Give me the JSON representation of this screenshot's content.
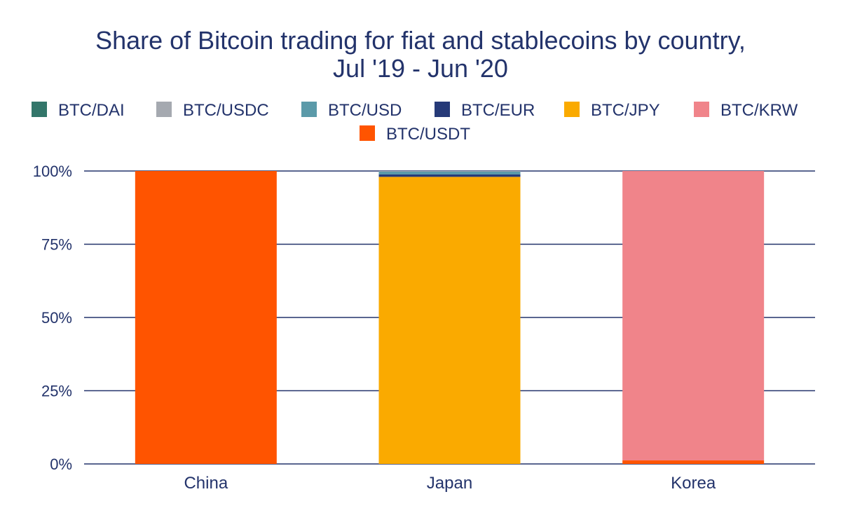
{
  "chart_data": {
    "type": "bar",
    "stacked": true,
    "title": "Share of Bitcoin trading for fiat and stablecoins by country, Jul '19 - Jun '20",
    "title_lines": [
      "Share of Bitcoin trading for fiat and stablecoins by country,",
      "Jul '19 - Jun '20"
    ],
    "categories": [
      "China",
      "Japan",
      "Korea"
    ],
    "ylim": [
      0,
      100
    ],
    "yticks": [
      0,
      25,
      50,
      75,
      100
    ],
    "ytick_labels": [
      "0%",
      "25%",
      "50%",
      "75%",
      "100%"
    ],
    "grid": true,
    "legend_position": "top",
    "series": [
      {
        "name": "BTC/USDT",
        "color": "#ff5400",
        "values": [
          100,
          0,
          1.2
        ]
      },
      {
        "name": "BTC/KRW",
        "color": "#f0848a",
        "values": [
          0,
          0,
          98.8
        ]
      },
      {
        "name": "BTC/JPY",
        "color": "#faaa00",
        "values": [
          0,
          98,
          0
        ]
      },
      {
        "name": "BTC/EUR",
        "color": "#263a78",
        "values": [
          0,
          0.8,
          0
        ]
      },
      {
        "name": "BTC/USD",
        "color": "#5b9aa9",
        "values": [
          0,
          1.0,
          0
        ]
      },
      {
        "name": "BTC/USDC",
        "color": "#a5a9b0",
        "values": [
          0,
          0.2,
          0
        ]
      },
      {
        "name": "BTC/DAI",
        "color": "#33766a",
        "values": [
          0,
          0,
          0
        ]
      }
    ],
    "legend_order": [
      "BTC/DAI",
      "BTC/USDC",
      "BTC/USD",
      "BTC/EUR",
      "BTC/JPY",
      "BTC/KRW",
      "BTC/USDT"
    ]
  }
}
